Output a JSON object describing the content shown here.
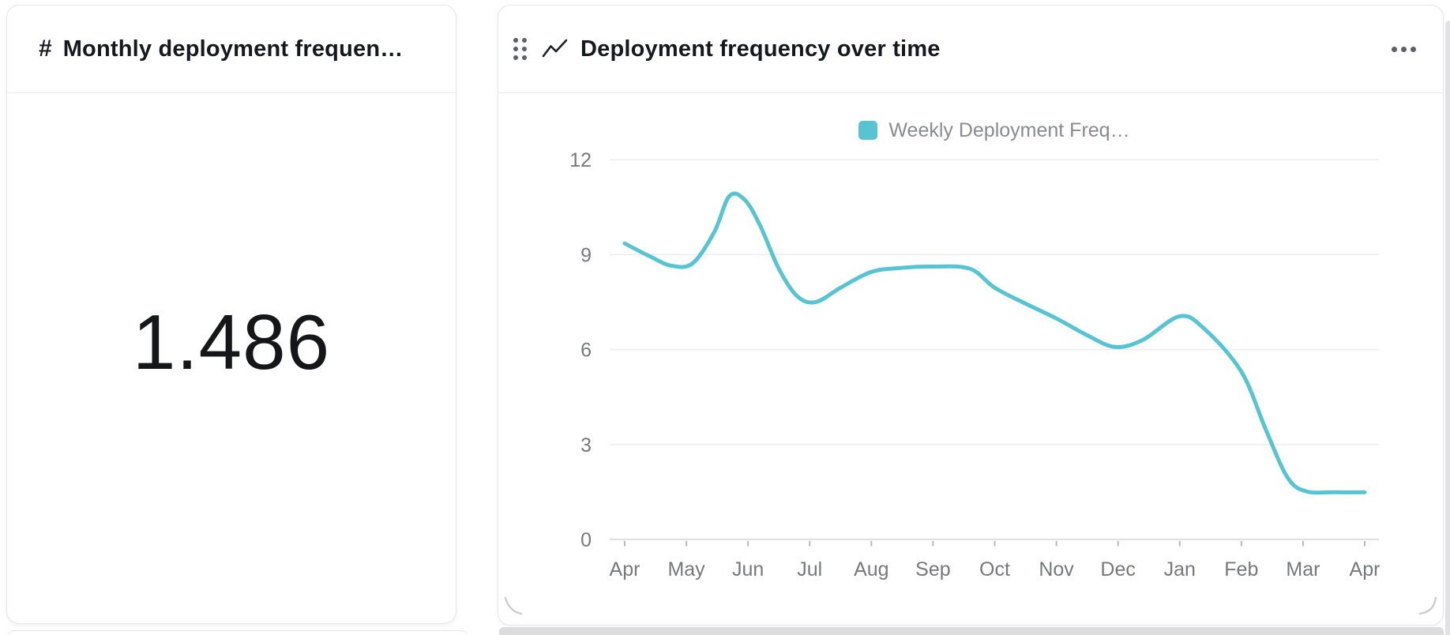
{
  "page": {
    "background": "#ffffff"
  },
  "left_card": {
    "icon": "#",
    "title": "Monthly deployment frequen…",
    "value": "1.486"
  },
  "right_card": {
    "title": "Deployment frequency over time",
    "more_menu": "ellipsis"
  },
  "chart_data": {
    "type": "line",
    "title": "Deployment frequency over time",
    "xlabel": "",
    "ylabel": "",
    "ylim": [
      0,
      12
    ],
    "grid": true,
    "legend_position": "top",
    "x_labels": [
      "Apr",
      "May",
      "Jun",
      "Jul",
      "Aug",
      "Sep",
      "Oct",
      "Nov",
      "Dec",
      "Jan",
      "Feb",
      "Mar",
      "Apr"
    ],
    "y_ticks": [
      0,
      3,
      6,
      9,
      12
    ],
    "monthly_values": [
      9.35,
      8.7,
      10.6,
      7.5,
      8.45,
      8.6,
      7.95,
      7.0,
      6.1,
      7.05,
      5.3,
      1.55,
      1.49
    ],
    "series": [
      {
        "name": "Weekly Deployment Freq…",
        "color": "#57c4d3",
        "points": [
          [
            0.0,
            9.35
          ],
          [
            0.4,
            8.95
          ],
          [
            0.75,
            8.65
          ],
          [
            1.1,
            8.72
          ],
          [
            1.45,
            9.7
          ],
          [
            1.7,
            10.85
          ],
          [
            1.95,
            10.72
          ],
          [
            2.2,
            9.9
          ],
          [
            2.5,
            8.55
          ],
          [
            2.8,
            7.68
          ],
          [
            3.1,
            7.5
          ],
          [
            3.5,
            7.95
          ],
          [
            4.0,
            8.45
          ],
          [
            4.5,
            8.58
          ],
          [
            5.0,
            8.62
          ],
          [
            5.6,
            8.55
          ],
          [
            6.0,
            7.95
          ],
          [
            6.5,
            7.45
          ],
          [
            7.0,
            6.98
          ],
          [
            7.5,
            6.45
          ],
          [
            7.95,
            6.08
          ],
          [
            8.4,
            6.3
          ],
          [
            9.0,
            7.05
          ],
          [
            9.4,
            6.65
          ],
          [
            10.0,
            5.3
          ],
          [
            10.4,
            3.45
          ],
          [
            10.75,
            1.95
          ],
          [
            11.05,
            1.52
          ],
          [
            11.5,
            1.49
          ],
          [
            12.0,
            1.49
          ]
        ]
      }
    ],
    "colors": {
      "line": "#57c4d3",
      "gridline": "#ededef",
      "axis_line": "#e0e0e3",
      "tick_mark": "#b8b9bc",
      "axis_text": "#77787b",
      "legend_text": "#8a8b8f"
    }
  }
}
